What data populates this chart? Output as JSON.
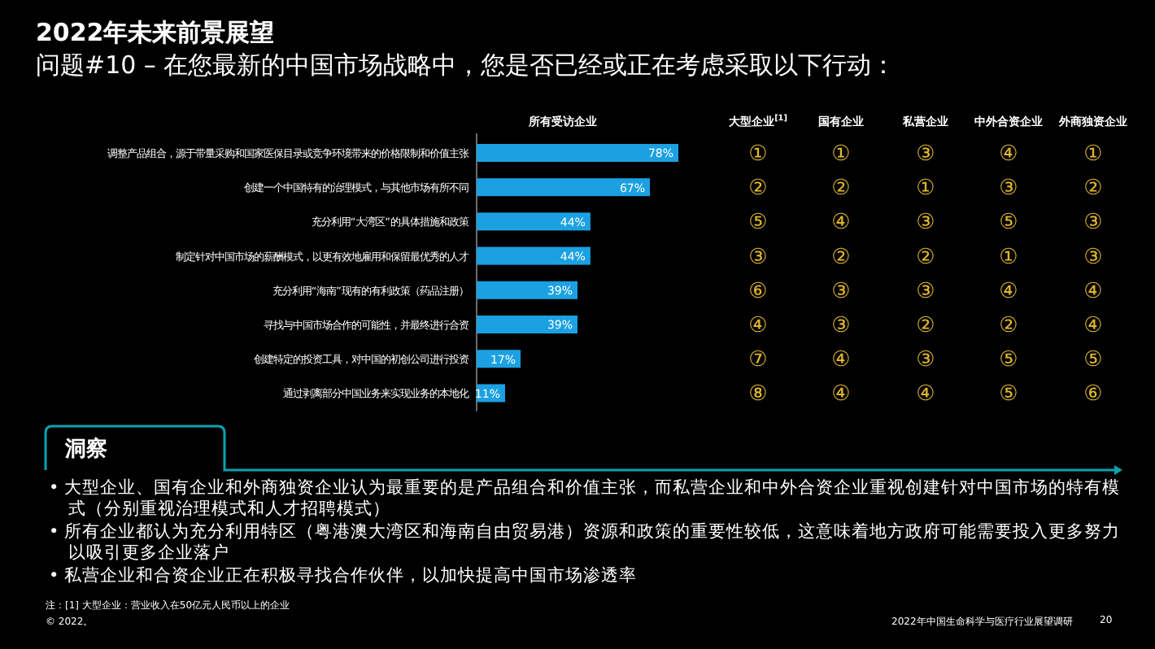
{
  "chart_data": [
    {
      "type": "bar",
      "orientation": "horizontal",
      "title": "2022年未来前景展望",
      "subtitle": "问题#10 – 在您最新的中国市场战略中，您是否已经或正在考虑采取以下行动：",
      "xlabel": "所有受访企业",
      "color": "#1ba1e2",
      "data_labels": true,
      "categories": [
        "调整产品组合，源于带量采购和国家医保目录或竞争环境带来的价格限制和价值主张",
        "创建一个中国特有的治理模式，与其他市场有所不同",
        "充分利用“大湾区”的具体措施和政策",
        "制定针对中国市场的薪酬模式，以更有效地雇用和保留最优秀的人才",
        "充分利用“海南”现有的有利政策（药品注册）",
        "寻找与中国市场合作的可能性，并最终进行合资",
        "创建特定的投资工具，对中国的初创公司进行投资",
        "通过剥离部分中国业务来实现业务的本地化"
      ],
      "values": [
        78,
        67,
        44,
        44,
        39,
        39,
        17,
        11
      ],
      "value_labels": [
        "78%",
        "67%",
        "44%",
        "44%",
        "39%",
        "39%",
        "17%",
        "11%"
      ]
    },
    {
      "type": "other",
      "categories": [
        "大型企业$^{[1]}$",
        "国有企业",
        "私营企业",
        "中外合资企业",
        "外商独资企业"
      ],
      "y_categories": [
        null,
        null,
        null,
        null,
        null,
        null,
        null,
        null
      ],
      "cell_labels": [
        [
          "①",
          "①",
          "③",
          "④",
          "①"
        ],
        [
          "②",
          "②",
          "①",
          "③",
          "②"
        ],
        [
          "⑤",
          "④",
          "③",
          "⑤",
          "③"
        ],
        [
          "③",
          "②",
          "②",
          "①",
          "③"
        ],
        [
          "⑥",
          "③",
          "③",
          "④",
          "④"
        ],
        [
          "④",
          "③",
          "②",
          "②",
          "④"
        ],
        [
          "⑦",
          "④",
          "③",
          "⑤",
          "⑤"
        ],
        [
          "⑧",
          "④",
          "④",
          "⑤",
          "⑥"
        ]
      ],
      "annotations": [
        "洞察",
        "• 大型企业、国有企业和外商独资企业认为最重要的是产品组合和价值主张，而私营企业和中外合资企业重视创建针对中国市场的特有模式（分别重视治理模式和人才招聘模式）",
        "• 所有企业都认为充分利用特区（粤港澳大湾区和海南自由贸易港）资源和政策的重要性较低，这意味着地方政府可能需要投入更多努力以吸引更多企业落户",
        "• 私营企业和合资企业正在积极寻找合作伙伴，以加快提高中国市场渗透率",
        "注：[1] 大型企业：营业收入在50亿元人民币以上的企业",
        "© 2022。",
        "2022年中国生命科学与医疗行业展望调研",
        "20"
      ]
    }
  ]
}
